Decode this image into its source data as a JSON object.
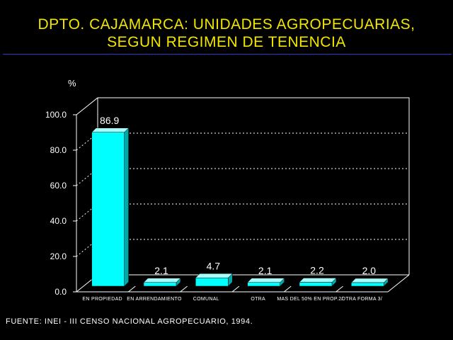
{
  "title_line1": "DPTO. CAJAMARCA: UNIDADES AGROPECUARIAS,",
  "title_line2": "SEGUN REGIMEN DE TENENCIA",
  "ylabel": "%",
  "source": "FUENTE: INEI - III CENSO NACIONAL AGROPECUARIO, 1994.",
  "colors": {
    "title": "#f2e600",
    "bar_face": "#00ffff",
    "bar_top": "#a8ffff",
    "bar_side": "#00a8a8",
    "axis": "#ffffff",
    "grid": "#ffffff",
    "rule": "#2a3cc8"
  },
  "chart_data": {
    "type": "bar",
    "categories": [
      "EN PROPIEDAD",
      "EN ARRENDAMIENTO",
      "COMUNAL",
      "OTRA",
      "MAS DEL 50% EN PROP.2/",
      "OTRA FORMA 3/"
    ],
    "values": [
      86.9,
      2.1,
      4.7,
      2.1,
      2.2,
      2.0
    ],
    "value_labels": [
      "86.9",
      "2.1",
      "4.7",
      "2.1",
      "2.2",
      "2.0"
    ],
    "yticks": [
      "0.0",
      "20.0",
      "40.0",
      "60.0",
      "80.0",
      "100.0"
    ],
    "ylim": [
      0,
      100
    ],
    "grid": true,
    "ylabel": "%"
  }
}
